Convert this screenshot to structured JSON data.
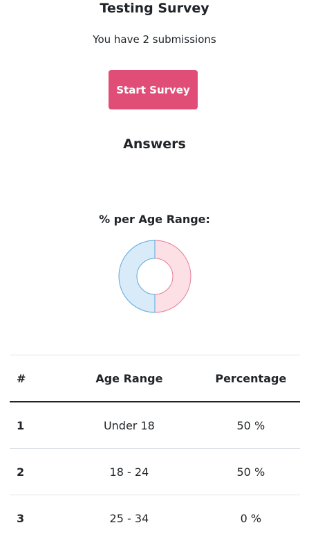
{
  "header": {
    "title": "Testing Survey",
    "submissions_text": "You have 2 submissions",
    "start_label": "Start Survey"
  },
  "answers": {
    "heading": "Answers"
  },
  "chart_data": {
    "type": "pie",
    "title": "% per Age Range:",
    "donut": true,
    "categories": [
      "Under 18",
      "18 - 24",
      "25 - 34"
    ],
    "values": [
      50,
      50,
      0
    ],
    "colors": {
      "Under 18": {
        "fill": "#fde0e6",
        "stroke": "#e57c97"
      },
      "18 - 24": {
        "fill": "#d9ebf9",
        "stroke": "#5aa8dc"
      },
      "25 - 34": {
        "fill": "#fff3cd",
        "stroke": "#f0c040"
      }
    }
  },
  "table": {
    "headers": [
      "#",
      "Age Range",
      "Percentage"
    ],
    "rows": [
      {
        "num": "1",
        "range": "Under 18",
        "percentage": "50 %"
      },
      {
        "num": "2",
        "range": "18 - 24",
        "percentage": "50 %"
      },
      {
        "num": "3",
        "range": "25 - 34",
        "percentage": "0 %"
      }
    ]
  }
}
